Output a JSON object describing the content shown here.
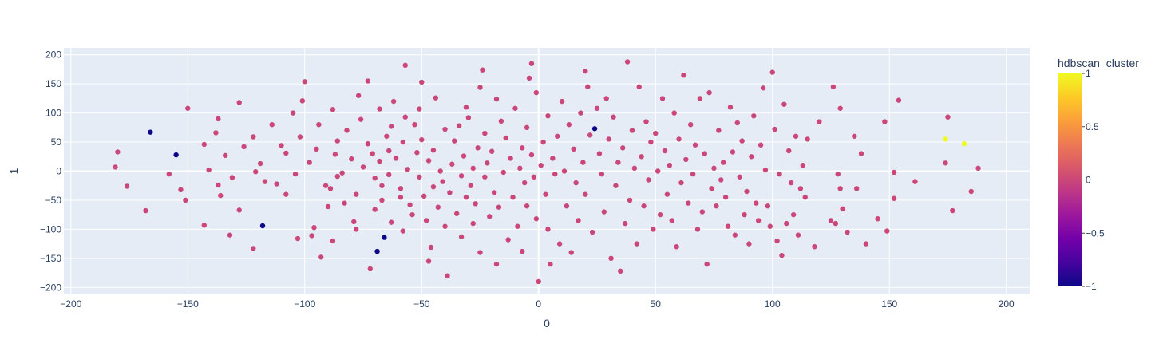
{
  "chart_data": {
    "type": "scatter",
    "title": "",
    "xlabel": "0",
    "ylabel": "1",
    "xlim": [
      -203,
      210
    ],
    "ylim": [
      -212,
      212
    ],
    "xticks": [
      -200,
      -150,
      -100,
      -50,
      0,
      50,
      100,
      150,
      200
    ],
    "yticks": [
      -200,
      -150,
      -100,
      -50,
      0,
      50,
      100,
      150,
      200
    ],
    "xtick_labels": [
      "−200",
      "−150",
      "−100",
      "−50",
      "0",
      "50",
      "100",
      "150",
      "200"
    ],
    "ytick_labels": [
      "−200",
      "−150",
      "−100",
      "−50",
      "0",
      "50",
      "100",
      "150",
      "200"
    ],
    "grid": true,
    "plot_background": "#e5ecf6",
    "colorbar": {
      "title": "hdbscan_cluster",
      "range": [
        -1,
        1
      ],
      "ticks": [
        1,
        0.5,
        0,
        -0.5,
        -1
      ],
      "tick_labels": [
        "1",
        "0.5",
        "0",
        "−0.5",
        "−1"
      ],
      "colors": [
        "#0d0887",
        "#46039f",
        "#7201a8",
        "#9c179e",
        "#bd3786",
        "#d8576b",
        "#ed7953",
        "#fb9f3a",
        "#fdca26",
        "#f0f921"
      ]
    },
    "points": [
      [
        -180,
        33,
        0
      ],
      [
        -181,
        7,
        0
      ],
      [
        -176,
        -26,
        0
      ],
      [
        -168,
        -68,
        0
      ],
      [
        -166,
        67,
        -1
      ],
      [
        -158,
        -5,
        0
      ],
      [
        -155,
        28,
        -1
      ],
      [
        -153,
        -32,
        0
      ],
      [
        -151,
        -50,
        0
      ],
      [
        -150,
        108,
        0
      ],
      [
        -143,
        46,
        0
      ],
      [
        -143,
        -93,
        0
      ],
      [
        -141,
        2,
        0
      ],
      [
        -138,
        66,
        0
      ],
      [
        -137,
        90,
        0
      ],
      [
        -137,
        -24,
        0
      ],
      [
        -136,
        -42,
        0
      ],
      [
        -134,
        27,
        0
      ],
      [
        -132,
        -110,
        0
      ],
      [
        -131,
        -11,
        0
      ],
      [
        -128,
        118,
        0
      ],
      [
        -128,
        -67,
        0
      ],
      [
        -126,
        42,
        0
      ],
      [
        -122,
        59,
        0
      ],
      [
        -122,
        -133,
        0
      ],
      [
        -121,
        -1,
        0
      ],
      [
        -119,
        13,
        0
      ],
      [
        -118,
        -94,
        -1
      ],
      [
        -117,
        -18,
        0
      ],
      [
        -114,
        80,
        0
      ],
      [
        -112,
        -22,
        0
      ],
      [
        -110,
        44,
        0
      ],
      [
        -108,
        31,
        0
      ],
      [
        -108,
        -40,
        0
      ],
      [
        -105,
        100,
        0
      ],
      [
        -104,
        -5,
        0
      ],
      [
        -103,
        -116,
        0
      ],
      [
        -102,
        59,
        0
      ],
      [
        -101,
        121,
        0
      ],
      [
        -100,
        154,
        0
      ],
      [
        -98,
        15,
        0
      ],
      [
        -97,
        -111,
        0
      ],
      [
        -96,
        -97,
        0
      ],
      [
        -95,
        38,
        0
      ],
      [
        -94,
        80,
        0
      ],
      [
        -93,
        -148,
        0
      ],
      [
        -91,
        -25,
        0
      ],
      [
        -90,
        -61,
        0
      ],
      [
        -89,
        -30,
        0
      ],
      [
        -88,
        106,
        0
      ],
      [
        -88,
        -120,
        0
      ],
      [
        -87,
        29,
        0
      ],
      [
        -86,
        52,
        0
      ],
      [
        -86,
        -9,
        0
      ],
      [
        -84,
        -3,
        0
      ],
      [
        -83,
        -55,
        0
      ],
      [
        -82,
        70,
        0
      ],
      [
        -80,
        21,
        0
      ],
      [
        -79,
        -87,
        0
      ],
      [
        -78,
        -100,
        0
      ],
      [
        -78,
        -40,
        0
      ],
      [
        -77,
        130,
        0
      ],
      [
        -76,
        89,
        0
      ],
      [
        -75,
        7,
        0
      ],
      [
        -73,
        47,
        0
      ],
      [
        -73,
        155,
        0
      ],
      [
        -72,
        -168,
        0
      ],
      [
        -71,
        30,
        0
      ],
      [
        -70,
        -12,
        0
      ],
      [
        -70,
        -66,
        0
      ],
      [
        -69,
        -138,
        -1
      ],
      [
        -68,
        107,
        0
      ],
      [
        -68,
        17,
        0
      ],
      [
        -67,
        -25,
        0
      ],
      [
        -67,
        -50,
        0
      ],
      [
        -66,
        -114,
        -1
      ],
      [
        -65,
        60,
        0
      ],
      [
        -64,
        35,
        0
      ],
      [
        -64,
        -6,
        0
      ],
      [
        -63,
        77,
        0
      ],
      [
        -63,
        -88,
        0
      ],
      [
        -62,
        120,
        0
      ],
      [
        -61,
        22,
        0
      ],
      [
        -59,
        -30,
        0
      ],
      [
        -59,
        -45,
        0
      ],
      [
        -58,
        50,
        0
      ],
      [
        -58,
        -103,
        0
      ],
      [
        -57,
        93,
        0
      ],
      [
        -57,
        182,
        0
      ],
      [
        -56,
        3,
        0
      ],
      [
        -55,
        -58,
        0
      ],
      [
        -54,
        -75,
        0
      ],
      [
        -53,
        80,
        0
      ],
      [
        -52,
        32,
        0
      ],
      [
        -51,
        107,
        0
      ],
      [
        -51,
        -10,
        0
      ],
      [
        -50,
        153,
        0
      ],
      [
        -50,
        54,
        0
      ],
      [
        -49,
        -43,
        0
      ],
      [
        -48,
        -85,
        0
      ],
      [
        -47,
        18,
        0
      ],
      [
        -47,
        -155,
        0
      ],
      [
        -46,
        -131,
        0
      ],
      [
        -45,
        -27,
        0
      ],
      [
        -45,
        36,
        0
      ],
      [
        -44,
        126,
        0
      ],
      [
        -43,
        -62,
        0
      ],
      [
        -42,
        0,
        0
      ],
      [
        -41,
        -18,
        0
      ],
      [
        -40,
        72,
        0
      ],
      [
        -40,
        -95,
        0
      ],
      [
        -39,
        -180,
        0
      ],
      [
        -38,
        -37,
        0
      ],
      [
        -37,
        12,
        0
      ],
      [
        -36,
        52,
        0
      ],
      [
        -35,
        -73,
        0
      ],
      [
        -34,
        78,
        0
      ],
      [
        -33,
        -8,
        0
      ],
      [
        -33,
        -113,
        0
      ],
      [
        -32,
        26,
        0
      ],
      [
        -31,
        110,
        0
      ],
      [
        -31,
        -45,
        0
      ],
      [
        -30,
        92,
        0
      ],
      [
        -29,
        -25,
        0
      ],
      [
        -28,
        5,
        0
      ],
      [
        -28,
        -90,
        0
      ],
      [
        -27,
        -56,
        0
      ],
      [
        -26,
        40,
        0
      ],
      [
        -25,
        144,
        0
      ],
      [
        -25,
        -140,
        0
      ],
      [
        -24,
        174,
        0
      ],
      [
        -23,
        65,
        0
      ],
      [
        -23,
        -10,
        0
      ],
      [
        -22,
        14,
        0
      ],
      [
        -21,
        -78,
        0
      ],
      [
        -20,
        34,
        0
      ],
      [
        -19,
        -37,
        0
      ],
      [
        -18,
        124,
        0
      ],
      [
        -18,
        -160,
        0
      ],
      [
        -17,
        -62,
        0
      ],
      [
        -16,
        86,
        0
      ],
      [
        -15,
        -2,
        0
      ],
      [
        -14,
        57,
        0
      ],
      [
        -13,
        -118,
        0
      ],
      [
        -12,
        22,
        0
      ],
      [
        -11,
        -45,
        0
      ],
      [
        -10,
        108,
        0
      ],
      [
        -9,
        -95,
        0
      ],
      [
        -8,
        5,
        0
      ],
      [
        -7,
        40,
        0
      ],
      [
        -7,
        -138,
        0
      ],
      [
        -6,
        -20,
        0
      ],
      [
        -5,
        75,
        0
      ],
      [
        -5,
        -60,
        0
      ],
      [
        -4,
        160,
        0
      ],
      [
        -3,
        185,
        0
      ],
      [
        -3,
        28,
        0
      ],
      [
        -2,
        -10,
        0
      ],
      [
        -1,
        -82,
        0
      ],
      [
        -1,
        135,
        0
      ],
      [
        0,
        -190,
        0
      ],
      [
        1,
        10,
        0
      ],
      [
        2,
        50,
        0
      ],
      [
        3,
        -40,
        0
      ],
      [
        4,
        95,
        0
      ],
      [
        4,
        -100,
        0
      ],
      [
        5,
        -160,
        0
      ],
      [
        6,
        22,
        0
      ],
      [
        7,
        -5,
        0
      ],
      [
        8,
        60,
        0
      ],
      [
        9,
        -125,
        0
      ],
      [
        10,
        120,
        0
      ],
      [
        11,
        0,
        0
      ],
      [
        12,
        -60,
        0
      ],
      [
        13,
        80,
        0
      ],
      [
        14,
        -140,
        0
      ],
      [
        15,
        38,
        0
      ],
      [
        16,
        -20,
        0
      ],
      [
        17,
        -85,
        0
      ],
      [
        18,
        100,
        0
      ],
      [
        19,
        15,
        0
      ],
      [
        20,
        172,
        0
      ],
      [
        20,
        -40,
        0
      ],
      [
        21,
        145,
        0
      ],
      [
        22,
        62,
        0
      ],
      [
        23,
        -105,
        0
      ],
      [
        24,
        73,
        -1
      ],
      [
        25,
        108,
        0
      ],
      [
        26,
        30,
        0
      ],
      [
        27,
        -5,
        0
      ],
      [
        28,
        -70,
        0
      ],
      [
        29,
        125,
        0
      ],
      [
        30,
        55,
        0
      ],
      [
        31,
        -150,
        0
      ],
      [
        32,
        93,
        0
      ],
      [
        33,
        -25,
        0
      ],
      [
        34,
        15,
        0
      ],
      [
        35,
        -172,
        0
      ],
      [
        36,
        40,
        0
      ],
      [
        37,
        -90,
        0
      ],
      [
        38,
        188,
        0
      ],
      [
        39,
        -50,
        0
      ],
      [
        40,
        70,
        0
      ],
      [
        41,
        5,
        0
      ],
      [
        42,
        -125,
        0
      ],
      [
        43,
        145,
        0
      ],
      [
        44,
        25,
        0
      ],
      [
        45,
        -60,
        0
      ],
      [
        46,
        85,
        0
      ],
      [
        47,
        -15,
        0
      ],
      [
        48,
        50,
        0
      ],
      [
        49,
        -100,
        0
      ],
      [
        50,
        65,
        0
      ],
      [
        51,
        0,
        0
      ],
      [
        52,
        -75,
        0
      ],
      [
        53,
        125,
        0
      ],
      [
        54,
        35,
        0
      ],
      [
        55,
        -40,
        0
      ],
      [
        56,
        10,
        0
      ],
      [
        57,
        -85,
        0
      ],
      [
        58,
        100,
        0
      ],
      [
        59,
        -130,
        0
      ],
      [
        60,
        55,
        0
      ],
      [
        61,
        -20,
        0
      ],
      [
        62,
        165,
        0
      ],
      [
        63,
        20,
        0
      ],
      [
        64,
        -55,
        0
      ],
      [
        65,
        80,
        0
      ],
      [
        66,
        -5,
        0
      ],
      [
        67,
        45,
        0
      ],
      [
        68,
        -100,
        0
      ],
      [
        69,
        125,
        0
      ],
      [
        70,
        -70,
        0
      ],
      [
        71,
        30,
        0
      ],
      [
        72,
        -160,
        0
      ],
      [
        73,
        135,
        0
      ],
      [
        74,
        -30,
        0
      ],
      [
        75,
        5,
        0
      ],
      [
        76,
        -60,
        0
      ],
      [
        77,
        70,
        0
      ],
      [
        78,
        -15,
        0
      ],
      [
        79,
        15,
        0
      ],
      [
        80,
        -45,
        0
      ],
      [
        81,
        -95,
        0
      ],
      [
        82,
        110,
        0
      ],
      [
        83,
        33,
        0
      ],
      [
        84,
        -110,
        0
      ],
      [
        85,
        83,
        0
      ],
      [
        86,
        -10,
        0
      ],
      [
        87,
        52,
        0
      ],
      [
        88,
        -75,
        0
      ],
      [
        89,
        -35,
        0
      ],
      [
        90,
        -125,
        0
      ],
      [
        91,
        25,
        0
      ],
      [
        92,
        95,
        0
      ],
      [
        93,
        -55,
        0
      ],
      [
        94,
        -85,
        0
      ],
      [
        95,
        45,
        0
      ],
      [
        96,
        143,
        0
      ],
      [
        97,
        2,
        0
      ],
      [
        98,
        -60,
        0
      ],
      [
        99,
        -95,
        0
      ],
      [
        100,
        170,
        0
      ],
      [
        101,
        72,
        0
      ],
      [
        102,
        -120,
        0
      ],
      [
        103,
        -5,
        0
      ],
      [
        104,
        -145,
        0
      ],
      [
        105,
        115,
        0
      ],
      [
        106,
        -90,
        0
      ],
      [
        107,
        35,
        0
      ],
      [
        108,
        -20,
        0
      ],
      [
        109,
        -75,
        0
      ],
      [
        110,
        60,
        0
      ],
      [
        111,
        -110,
        0
      ],
      [
        112,
        -30,
        0
      ],
      [
        113,
        10,
        0
      ],
      [
        114,
        -45,
        0
      ],
      [
        115,
        55,
        0
      ],
      [
        118,
        -130,
        0
      ],
      [
        120,
        85,
        0
      ],
      [
        125,
        -85,
        0
      ],
      [
        126,
        145,
        0
      ],
      [
        127,
        -90,
        0
      ],
      [
        128,
        -5,
        0
      ],
      [
        129,
        108,
        0
      ],
      [
        129,
        -30,
        0
      ],
      [
        130,
        -65,
        0
      ],
      [
        132,
        -105,
        0
      ],
      [
        135,
        60,
        0
      ],
      [
        136,
        -30,
        0
      ],
      [
        138,
        30,
        0
      ],
      [
        140,
        -125,
        0
      ],
      [
        145,
        -82,
        0
      ],
      [
        148,
        85,
        0
      ],
      [
        149,
        -103,
        0
      ],
      [
        152,
        -2,
        0
      ],
      [
        152,
        -47,
        0
      ],
      [
        154,
        122,
        0
      ],
      [
        161,
        -18,
        0
      ],
      [
        174,
        14,
        0
      ],
      [
        174,
        55,
        1
      ],
      [
        175,
        93,
        0
      ],
      [
        177,
        -68,
        0
      ],
      [
        182,
        47,
        1
      ],
      [
        185,
        -35,
        0
      ],
      [
        188,
        5,
        0
      ]
    ]
  }
}
